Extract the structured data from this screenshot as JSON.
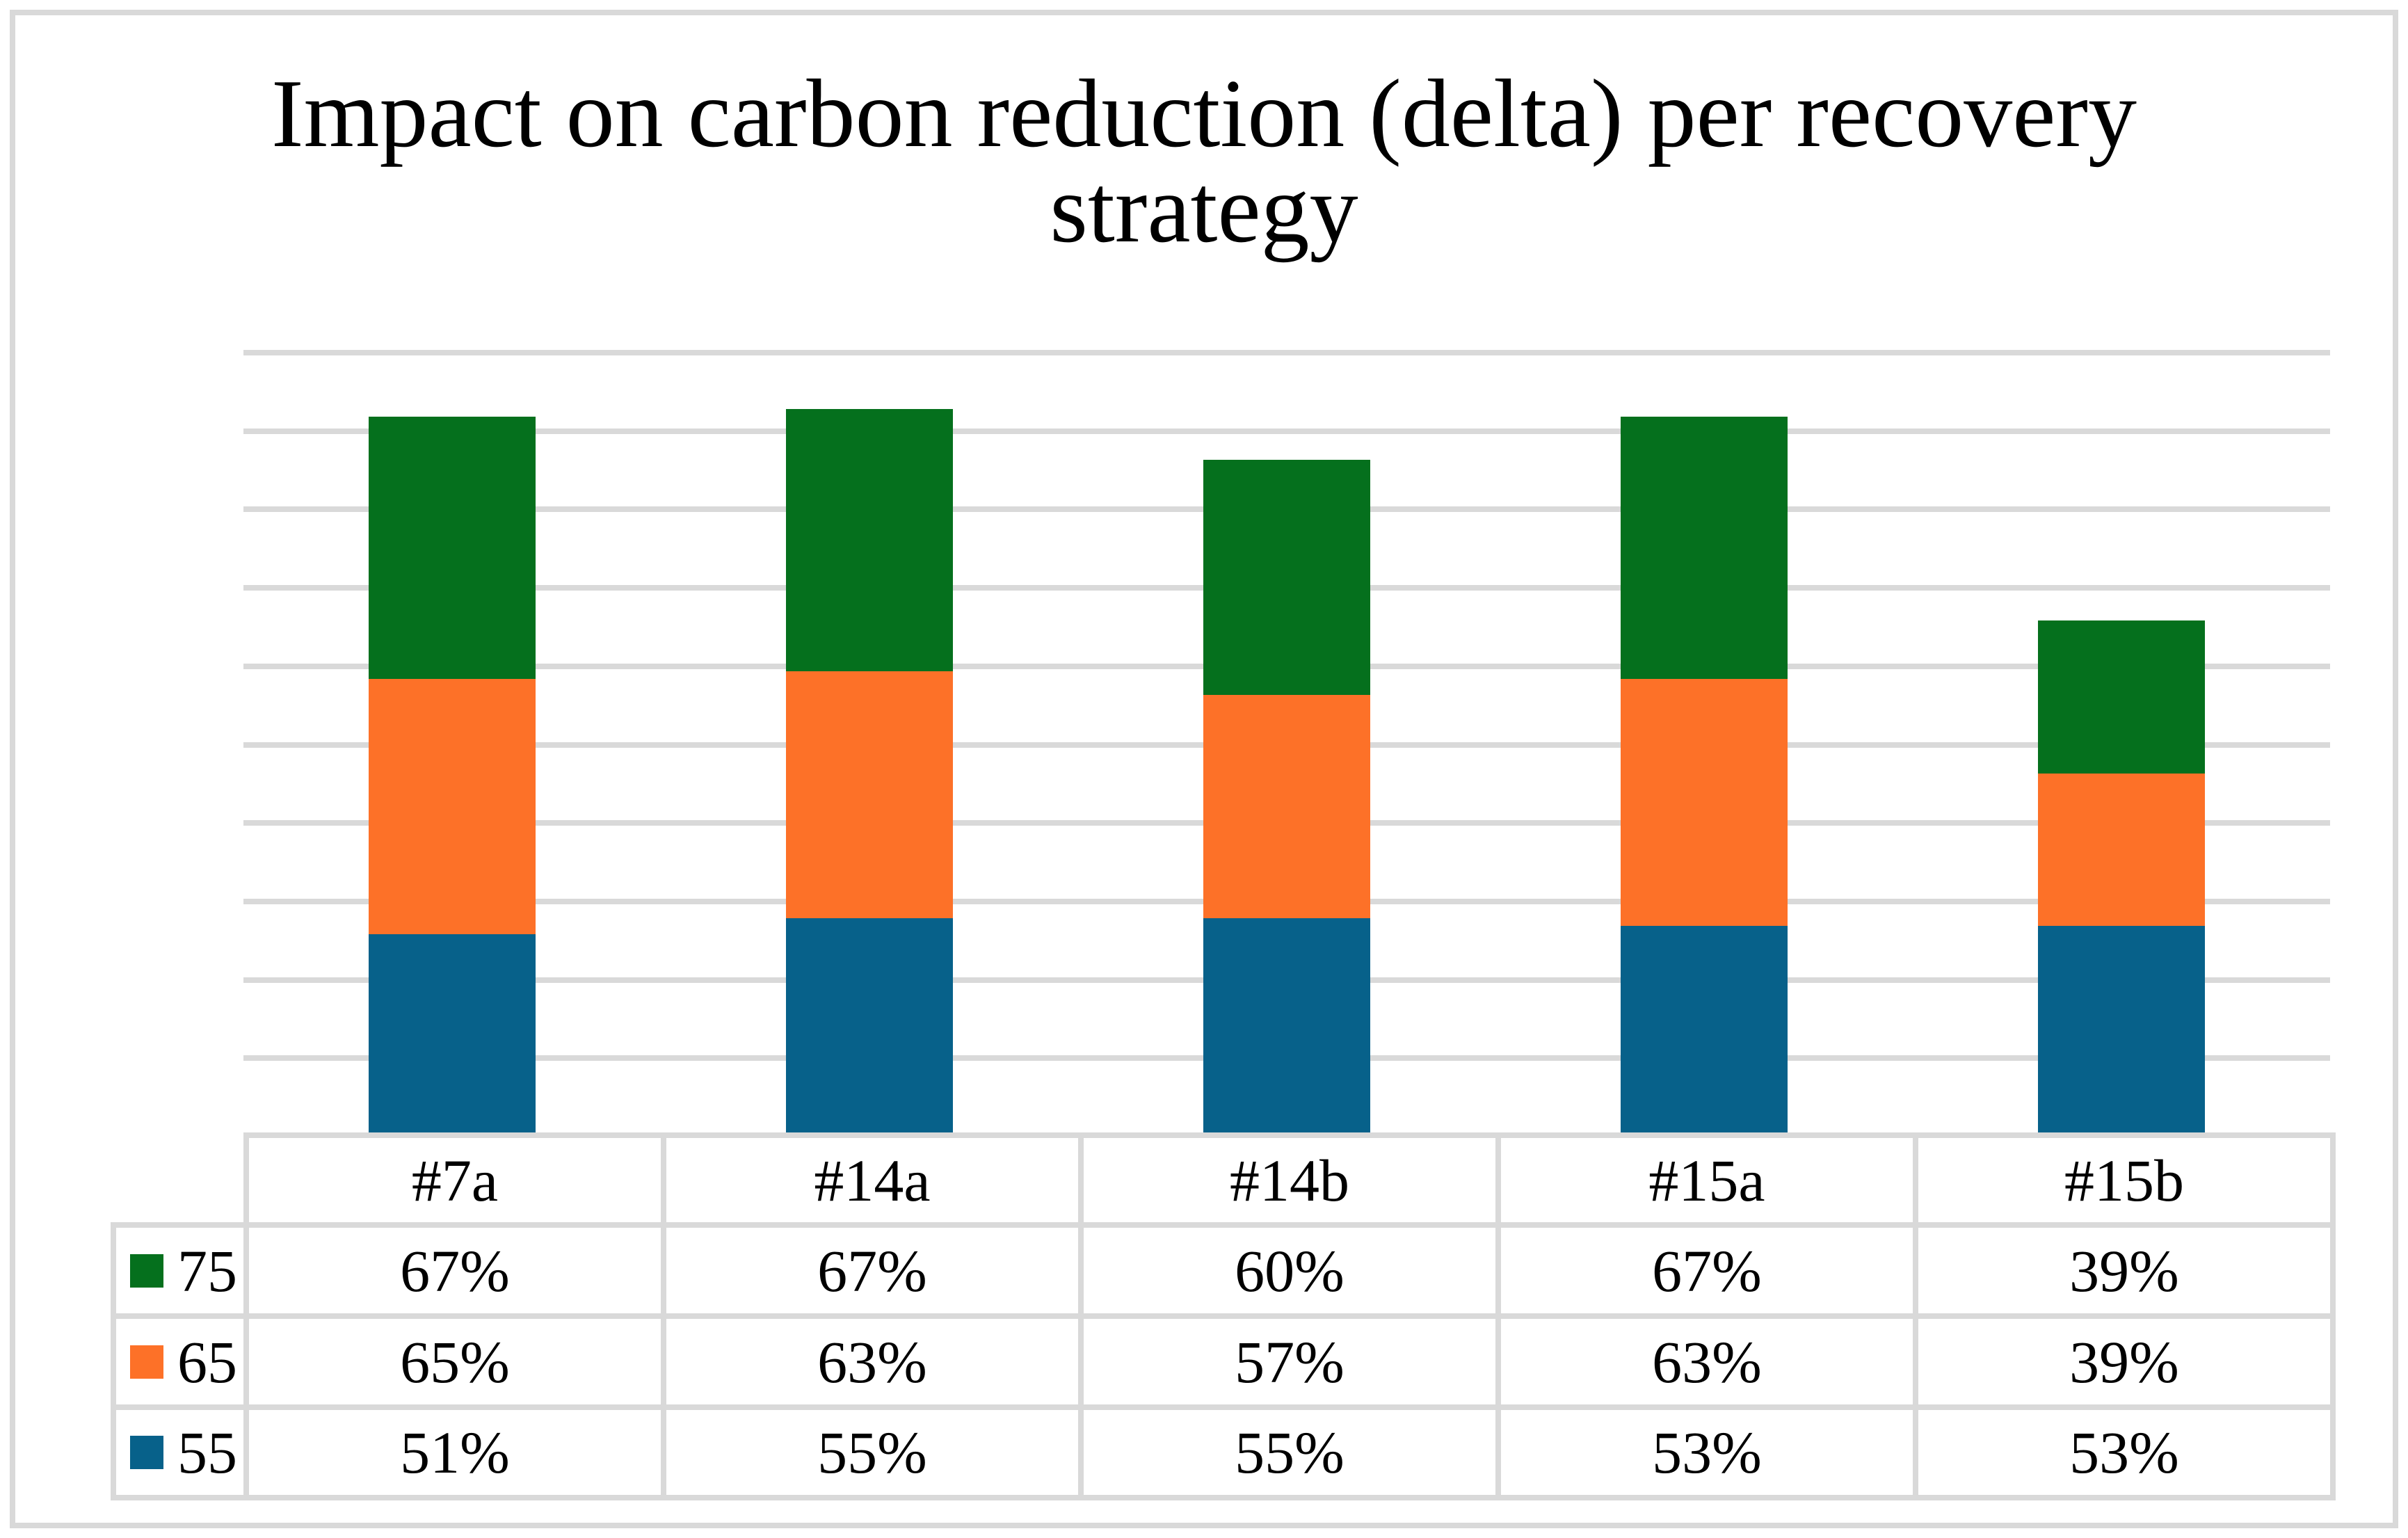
{
  "title": {
    "text": "Impact on carbon reduction (delta) per recovery strategy",
    "lines": [
      "Impact on carbon reduction (delta) per recovery",
      "strategy"
    ]
  },
  "colors": {
    "series_75": "#05701d",
    "series_65": "#fd7128",
    "series_55": "#07618a",
    "gridline": "#d9d9d9",
    "table_border": "#d9d9d9",
    "text": "#000000",
    "background": "#ffffff"
  },
  "chart_data": {
    "type": "bar",
    "subtype": "stacked-column",
    "title": "Impact on carbon reduction (delta) per recovery strategy",
    "categories": [
      "#7a",
      "#14a",
      "#14b",
      "#15a",
      "#15b"
    ],
    "series": [
      {
        "name": "75",
        "color": "#05701d",
        "values": [
          67,
          67,
          60,
          67,
          39
        ],
        "labels": [
          "67%",
          "67%",
          "60%",
          "67%",
          "39%"
        ]
      },
      {
        "name": "65",
        "color": "#fd7128",
        "values": [
          65,
          63,
          57,
          63,
          39
        ],
        "labels": [
          "65%",
          "63%",
          "57%",
          "63%",
          "39%"
        ]
      },
      {
        "name": "55",
        "color": "#07618a",
        "values": [
          51,
          55,
          55,
          53,
          53
        ],
        "labels": [
          "51%",
          "55%",
          "55%",
          "53%",
          "53%"
        ]
      }
    ],
    "stack_order_bottom_to_top": [
      "55",
      "65",
      "75"
    ],
    "xlabel": "",
    "ylabel": "",
    "ylim": [
      0,
      200
    ],
    "gridline_step": 20,
    "grid": true,
    "y_axis_labels_visible": false,
    "legend_position": "data-table-left",
    "data_table_visible": true
  },
  "table": {
    "header": [
      "#7a",
      "#14a",
      "#14b",
      "#15a",
      "#15b"
    ],
    "rows": [
      {
        "key": "75",
        "swatch_color": "#05701d",
        "cells": [
          "67%",
          "67%",
          "60%",
          "67%",
          "39%"
        ]
      },
      {
        "key": "65",
        "swatch_color": "#fd7128",
        "cells": [
          "65%",
          "63%",
          "57%",
          "63%",
          "39%"
        ]
      },
      {
        "key": "55",
        "swatch_color": "#07618a",
        "cells": [
          "51%",
          "55%",
          "55%",
          "53%",
          "53%"
        ]
      }
    ]
  }
}
